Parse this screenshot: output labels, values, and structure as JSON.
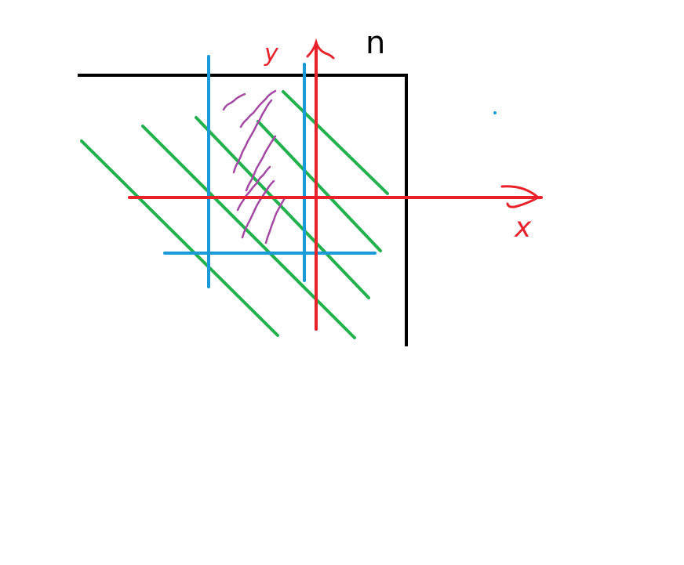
{
  "colors": {
    "background": "#ffffff",
    "border": "#000000",
    "axes": "#e8212a",
    "vertical_bounds": "#1a9bd7",
    "diagonals": "#22b14c",
    "shading": "#a349a4"
  },
  "labels": {
    "corner": "n",
    "y_axis": "y",
    "x_axis": "x"
  }
}
